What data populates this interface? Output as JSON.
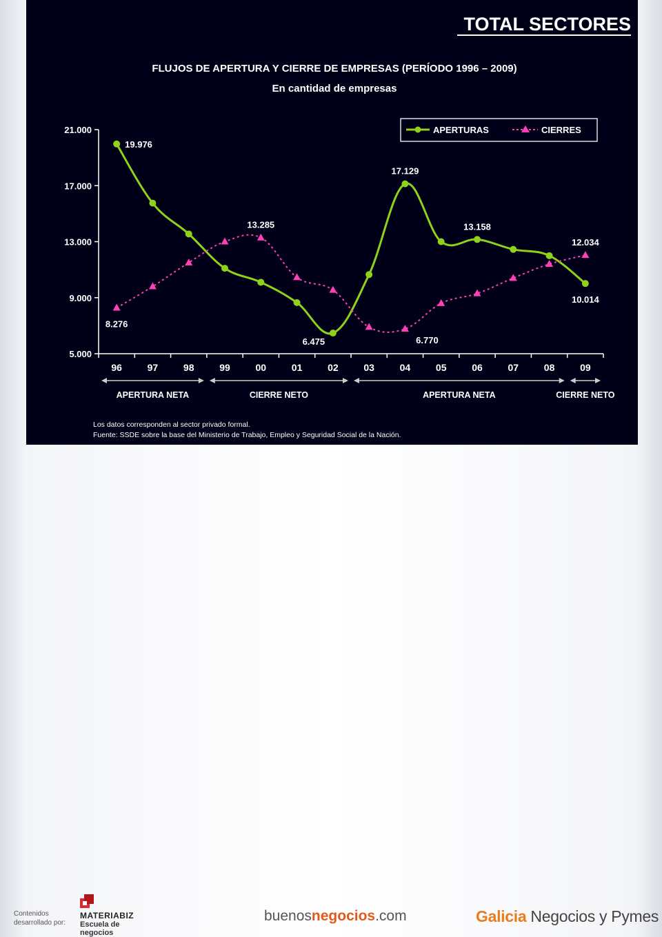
{
  "slide": {
    "header": "TOTAL SECTORES",
    "background": "#000018"
  },
  "chart_data": {
    "type": "line",
    "title": "FLUJOS DE APERTURA Y CIERRE DE EMPRESAS (PERÍODO 1996 – 2009)",
    "subtitle": "En cantidad de empresas",
    "categories": [
      "96",
      "97",
      "98",
      "99",
      "00",
      "01",
      "02",
      "03",
      "04",
      "05",
      "06",
      "07",
      "08",
      "09"
    ],
    "y_ticks": [
      "5.000",
      "9.000",
      "13.000",
      "17.000",
      "21.000"
    ],
    "ylim": [
      5000,
      21000
    ],
    "grid": false,
    "legend": "top-right",
    "series": [
      {
        "name": "APERTURAS",
        "color": "#8fd11b",
        "style": "solid-circle",
        "values": [
          19976,
          15750,
          13550,
          11100,
          10100,
          8650,
          6475,
          10650,
          17129,
          13000,
          13158,
          12450,
          12000,
          10014
        ]
      },
      {
        "name": "CIERRES",
        "color": "#ff3fb5",
        "style": "dashed-triangle",
        "values": [
          8276,
          9800,
          11500,
          13000,
          13285,
          10450,
          9550,
          6900,
          6770,
          8600,
          9300,
          10400,
          11400,
          12034
        ]
      }
    ],
    "data_labels": [
      {
        "series": 0,
        "index": 0,
        "text": "19.976",
        "pos": "right"
      },
      {
        "series": 0,
        "index": 6,
        "text": "6.475",
        "pos": "below-left"
      },
      {
        "series": 0,
        "index": 8,
        "text": "17.129",
        "pos": "above"
      },
      {
        "series": 0,
        "index": 10,
        "text": "13.158",
        "pos": "above"
      },
      {
        "series": 0,
        "index": 13,
        "text": "10.014",
        "pos": "below"
      },
      {
        "series": 1,
        "index": 0,
        "text": "8.276",
        "pos": "below"
      },
      {
        "series": 1,
        "index": 4,
        "text": "13.285",
        "pos": "above"
      },
      {
        "series": 1,
        "index": 8,
        "text": "6.770",
        "pos": "below-right"
      },
      {
        "series": 1,
        "index": 13,
        "text": "12.034",
        "pos": "above"
      }
    ],
    "periods": [
      {
        "label": "APERTURA NETA",
        "from": 0,
        "to": 2
      },
      {
        "label": "CIERRE NETO",
        "from": 3,
        "to": 6
      },
      {
        "label": "APERTURA NETA",
        "from": 7,
        "to": 12
      },
      {
        "label": "CIERRE NETO",
        "from": 13,
        "to": 13
      }
    ],
    "notes": [
      "Los datos corresponden al sector privado formal.",
      "Fuente: SSDE sobre la base del Ministerio de Trabajo, Empleo y Seguridad Social de la Nación."
    ]
  },
  "footer": {
    "credit_line1": "Contenidos",
    "credit_line2": "desarrollado por:",
    "materiabiz": "MATERIABIZ",
    "materiabiz_sub": "Escuela de negocios",
    "buenos_pre": "buenos",
    "buenos_accent": "negocios",
    "buenos_post": ".com",
    "galicia_accent": "Galicia",
    "galicia_rest": " Negocios y Pymes",
    "colors": {
      "materiabiz": "#e0262e",
      "buenos": "#e05a1c",
      "galicia": "#e87d1e"
    }
  }
}
